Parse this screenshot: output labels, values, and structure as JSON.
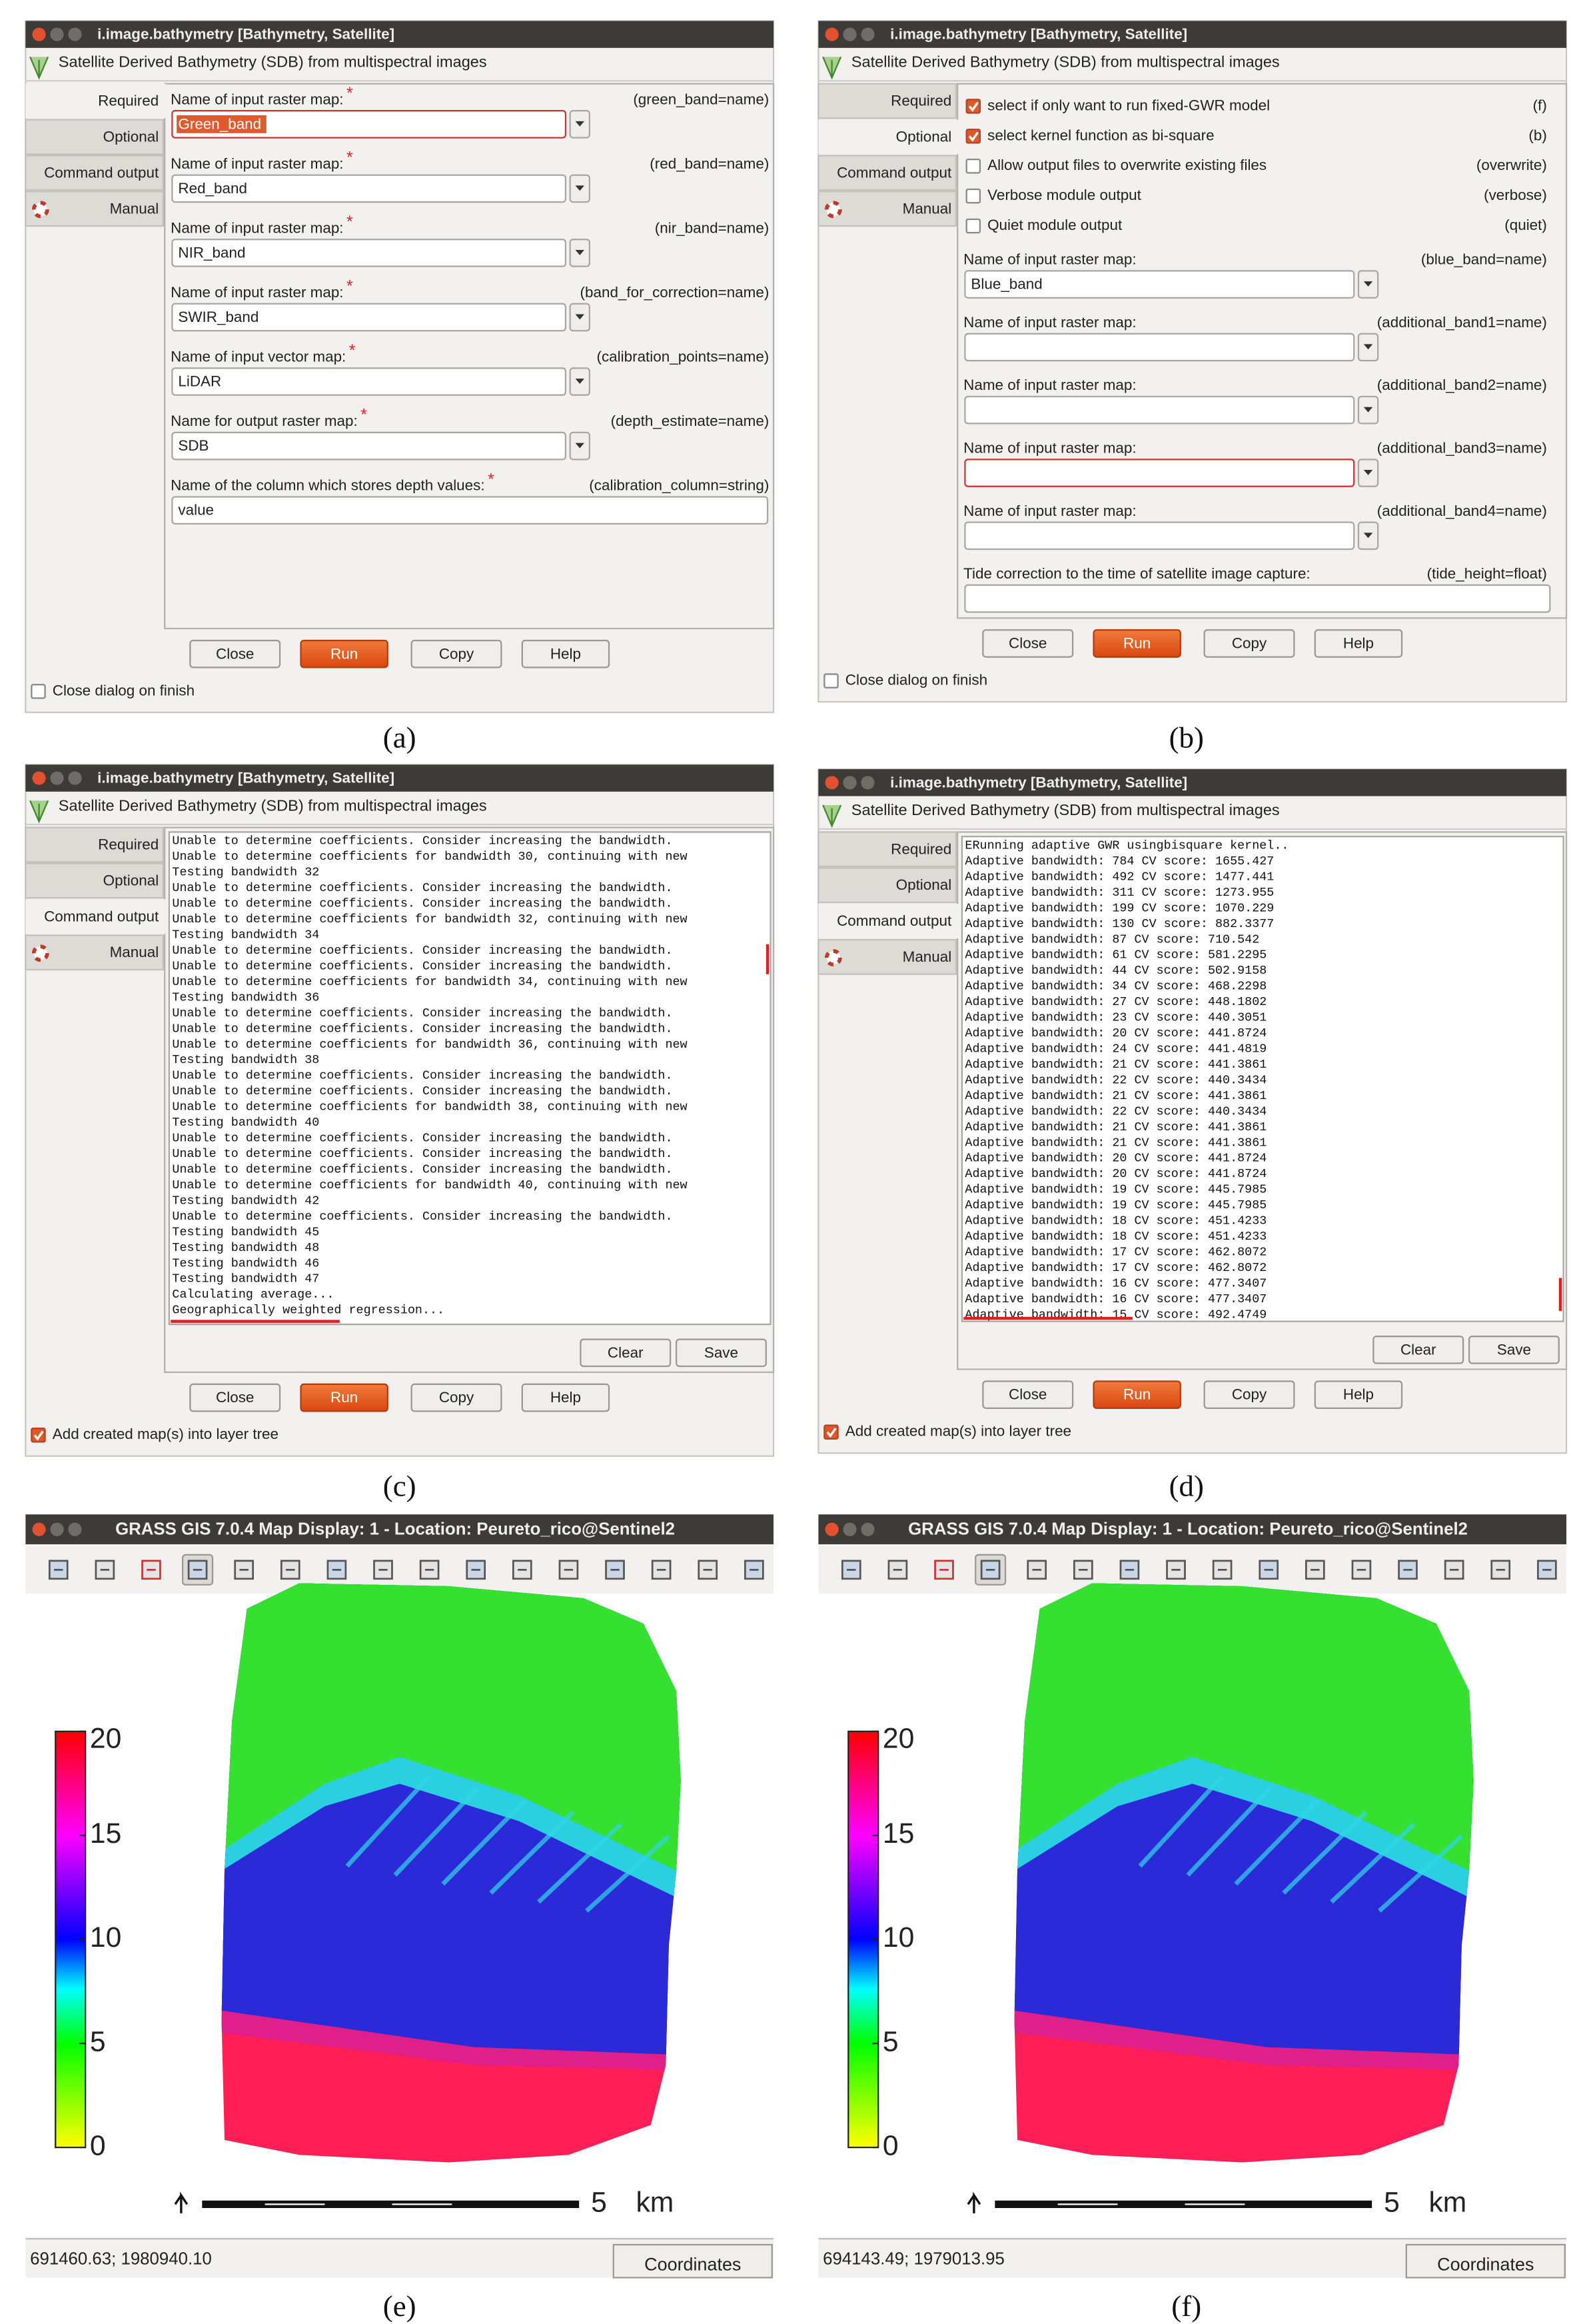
{
  "panels": [
    {
      "label": "(a)",
      "window_title": "i.image.bathymetry [Bathymetry, Satellite]",
      "header": "Satellite Derived Bathymetry (SDB) from multispectral images",
      "tabs": [
        "Required",
        "Optional",
        "Command output",
        "Manual"
      ],
      "active_tab": 0,
      "required_mark": "*",
      "fields": [
        {
          "label": "Name of input raster map:",
          "param": "(green_band=name)",
          "value": "Green_band",
          "required": true
        },
        {
          "label": "Name of input raster map:",
          "param": "(red_band=name)",
          "value": "Red_band",
          "required": true
        },
        {
          "label": "Name of input raster map:",
          "param": "(nir_band=name)",
          "value": "NIR_band",
          "required": true
        },
        {
          "label": "Name of input raster map:",
          "param": "(band_for_correction=name)",
          "value": "SWIR_band",
          "required": true
        },
        {
          "label": "Name of input vector map:",
          "param": "(calibration_points=name)",
          "value": "LiDAR",
          "required": true
        },
        {
          "label": "Name for output raster map:",
          "param": "(depth_estimate=name)",
          "value": "SDB",
          "required": true
        },
        {
          "label": "Name of the column which stores depth values:",
          "param": "(calibration_column=string)",
          "value": "value",
          "required": true,
          "dropdown": false
        }
      ],
      "buttons": [
        "Close",
        "Run",
        "Copy",
        "Help"
      ],
      "finish_checkbox": {
        "label": "Close dialog on finish",
        "checked": false
      }
    },
    {
      "label": "(b)",
      "window_title": "i.image.bathymetry [Bathymetry, Satellite]",
      "header": "Satellite Derived Bathymetry (SDB) from multispectral images",
      "tabs": [
        "Required",
        "Optional",
        "Command output",
        "Manual"
      ],
      "active_tab": 1,
      "flags": [
        {
          "label": "select if only want to run fixed-GWR model",
          "param": "(f)",
          "checked": true
        },
        {
          "label": "select kernel function as bi-square",
          "param": "(b)",
          "checked": true
        },
        {
          "label": "Allow output files to overwrite existing files",
          "param": "(overwrite)",
          "checked": false
        },
        {
          "label": "Verbose module output",
          "param": "(verbose)",
          "checked": false
        },
        {
          "label": "Quiet module output",
          "param": "(quiet)",
          "checked": false
        }
      ],
      "fields": [
        {
          "label": "Name of input raster map:",
          "param": "(blue_band=name)",
          "value": "Blue_band"
        },
        {
          "label": "Name of input raster map:",
          "param": "(additional_band1=name)"
        },
        {
          "label": "Name of input raster map:",
          "param": "(additional_band2=name)"
        },
        {
          "label": "Name of input raster map:",
          "param": "(additional_band3=name)"
        },
        {
          "label": "Name of input raster map:",
          "param": "(additional_band4=name)"
        },
        {
          "label": "Tide correction to the time of satellite image capture:",
          "param": "(tide_height=float)",
          "dropdown": false
        }
      ],
      "buttons": [
        "Close",
        "Run",
        "Copy",
        "Help"
      ],
      "finish_checkbox": {
        "label": "Close dialog on finish",
        "checked": false
      }
    },
    {
      "label": "(c)",
      "window_title": "i.image.bathymetry [Bathymetry, Satellite]",
      "header": "Satellite Derived Bathymetry (SDB) from multispectral images",
      "tabs": [
        "Required",
        "Optional",
        "Command output",
        "Manual"
      ],
      "active_tab": 2,
      "log": [
        "Unable to determine coefficients. Consider increasing the bandwidth.",
        "Unable to determine coefficients for bandwidth 30, continuing with new",
        "Testing bandwidth 32",
        "Unable to determine coefficients. Consider increasing the bandwidth.",
        "Unable to determine coefficients. Consider increasing the bandwidth.",
        "Unable to determine coefficients for bandwidth 32, continuing with new",
        "Testing bandwidth 34",
        "Unable to determine coefficients. Consider increasing the bandwidth.",
        "Unable to determine coefficients. Consider increasing the bandwidth.",
        "Unable to determine coefficients for bandwidth 34, continuing with new",
        "Testing bandwidth 36",
        "Unable to determine coefficients. Consider increasing the bandwidth.",
        "Unable to determine coefficients. Consider increasing the bandwidth.",
        "Unable to determine coefficients for bandwidth 36, continuing with new",
        "Testing bandwidth 38",
        "Unable to determine coefficients. Consider increasing the bandwidth.",
        "Unable to determine coefficients. Consider increasing the bandwidth.",
        "Unable to determine coefficients for bandwidth 38, continuing with new",
        "Testing bandwidth 40",
        "Unable to determine coefficients. Consider increasing the bandwidth.",
        "Unable to determine coefficients. Consider increasing the bandwidth.",
        "Unable to determine coefficients. Consider increasing the bandwidth.",
        "Unable to determine coefficients for bandwidth 40, continuing with new",
        "Testing bandwidth 42",
        "Unable to determine coefficients. Consider increasing the bandwidth.",
        "Testing bandwidth 45",
        "Testing bandwidth 48",
        "Testing bandwidth 46",
        "Testing bandwidth 47",
        "Calculating average...",
        "Geographically weighted regression..."
      ],
      "log_buttons": [
        "Clear",
        "Save"
      ],
      "buttons": [
        "Close",
        "Run",
        "Copy",
        "Help"
      ],
      "finish_checkbox": {
        "label": "Add created map(s) into layer tree",
        "checked": true
      }
    },
    {
      "label": "(d)",
      "window_title": "i.image.bathymetry [Bathymetry, Satellite]",
      "header": "Satellite Derived Bathymetry (SDB) from multispectral images",
      "tabs": [
        "Required",
        "Optional",
        "Command output",
        "Manual"
      ],
      "active_tab": 2,
      "log": [
        "ERunning adaptive GWR usingbisquare kernel..",
        "Adaptive bandwidth: 784 CV score: 1655.427",
        "Adaptive bandwidth: 492 CV score: 1477.441",
        "Adaptive bandwidth: 311 CV score: 1273.955",
        "Adaptive bandwidth: 199 CV score: 1070.229",
        "Adaptive bandwidth: 130 CV score: 882.3377",
        "Adaptive bandwidth: 87 CV score: 710.542",
        "Adaptive bandwidth: 61 CV score: 581.2295",
        "Adaptive bandwidth: 44 CV score: 502.9158",
        "Adaptive bandwidth: 34 CV score: 468.2298",
        "Adaptive bandwidth: 27 CV score: 448.1802",
        "Adaptive bandwidth: 23 CV score: 440.3051",
        "Adaptive bandwidth: 20 CV score: 441.8724",
        "Adaptive bandwidth: 24 CV score: 441.4819",
        "Adaptive bandwidth: 21 CV score: 441.3861",
        "Adaptive bandwidth: 22 CV score: 440.3434",
        "Adaptive bandwidth: 21 CV score: 441.3861",
        "Adaptive bandwidth: 22 CV score: 440.3434",
        "Adaptive bandwidth: 21 CV score: 441.3861",
        "Adaptive bandwidth: 21 CV score: 441.3861",
        "Adaptive bandwidth: 20 CV score: 441.8724",
        "Adaptive bandwidth: 20 CV score: 441.8724",
        "Adaptive bandwidth: 19 CV score: 445.7985",
        "Adaptive bandwidth: 19 CV score: 445.7985",
        "Adaptive bandwidth: 18 CV score: 451.4233",
        "Adaptive bandwidth: 18 CV score: 451.4233",
        "Adaptive bandwidth: 17 CV score: 462.8072",
        "Adaptive bandwidth: 17 CV score: 462.8072",
        "Adaptive bandwidth: 16 CV score: 477.3407",
        "Adaptive bandwidth: 16 CV score: 477.3407",
        "Adaptive bandwidth: 15 CV score: 492.4749"
      ],
      "log_buttons": [
        "Clear",
        "Save"
      ],
      "buttons": [
        "Close",
        "Run",
        "Copy",
        "Help"
      ],
      "finish_checkbox": {
        "label": "Add created map(s) into layer tree",
        "checked": true
      }
    },
    {
      "label": "(e)",
      "window_title": "GRASS GIS 7.0.4 Map Display: 1 - Location: Peureto_rico@Sentinel2",
      "colorbar": {
        "lim": [
          0,
          20
        ],
        "ticks": [
          20,
          15,
          10,
          5,
          0
        ]
      },
      "scale_bar": {
        "value": 5,
        "unit": "km"
      },
      "coordinates": "691460.63; 1980940.10",
      "coordinates_button": "Coordinates"
    },
    {
      "label": "(f)",
      "window_title": "GRASS GIS 7.0.4 Map Display: 1 - Location: Peureto_rico@Sentinel2",
      "colorbar": {
        "lim": [
          0,
          20
        ],
        "ticks": [
          20,
          15,
          10,
          5,
          0
        ]
      },
      "scale_bar": {
        "value": 5,
        "unit": "km"
      },
      "coordinates": "694143.49; 1979013.95",
      "coordinates_button": "Coordinates"
    }
  ]
}
